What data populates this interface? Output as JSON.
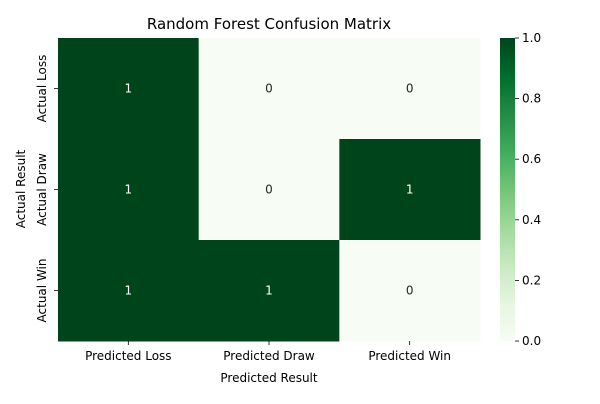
{
  "chart_data": {
    "type": "heatmap",
    "title": "Random Forest Confusion Matrix",
    "xlabel": "Predicted Result",
    "ylabel": "Actual Result",
    "x_categories": [
      "Predicted Loss",
      "Predicted Draw",
      "Predicted Win"
    ],
    "y_categories": [
      "Actual Loss",
      "Actual Draw",
      "Actual Win"
    ],
    "values": [
      [
        1,
        0,
        0
      ],
      [
        1,
        0,
        1
      ],
      [
        1,
        1,
        0
      ]
    ],
    "colormap": "Greens",
    "color_low": "#f7fcf5",
    "color_high": "#00441b",
    "colorbar_range": [
      0,
      1
    ],
    "colorbar_ticks": [
      "0.0",
      "0.2",
      "0.4",
      "0.6",
      "0.8",
      "1.0"
    ],
    "annotations": true
  }
}
